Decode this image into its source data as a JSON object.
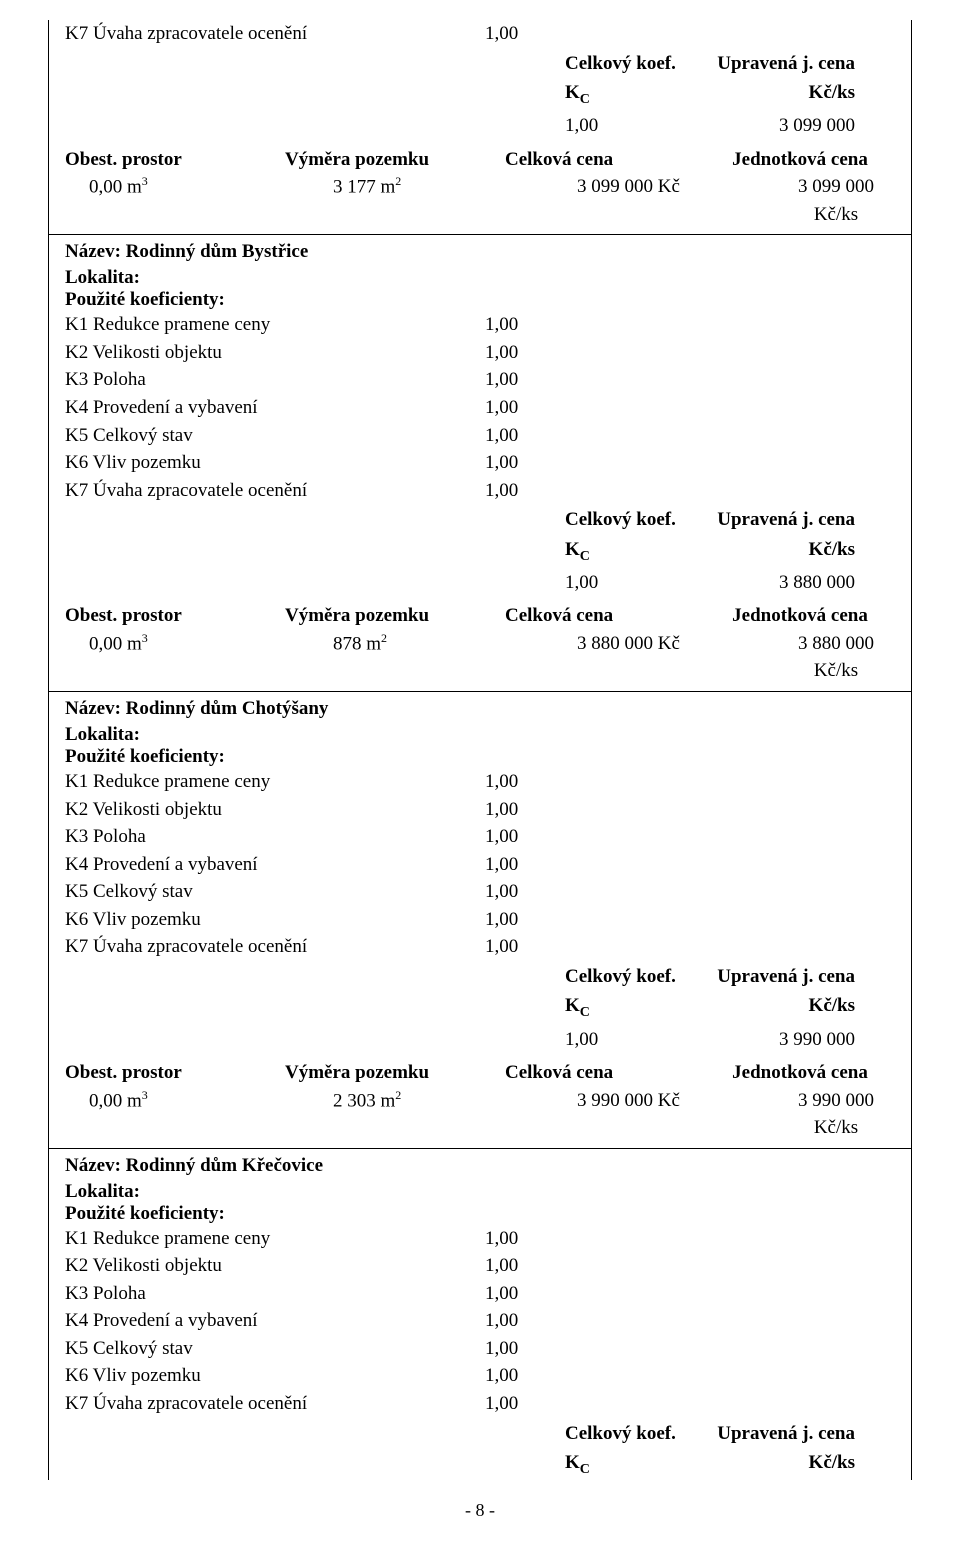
{
  "global": {
    "celkovy_koef_label": "Celkový koef.",
    "upravena_cena_label": "Upravená j. cena",
    "kc_symbol": "K",
    "kc_sub": "C",
    "kc_ks_label": "Kč/ks",
    "obest_prostor": "Obest. prostor",
    "vymera_pozemku": "Výměra pozemku",
    "celkova_cena": "Celková cena",
    "jednotkova_cena": "Jednotková cena",
    "lokalita": "Lokalita:",
    "pouzite_koef": "Použité koeficienty:",
    "k1": "K1 Redukce pramene ceny",
    "k2": "K2 Velikosti objektu",
    "k3": "K3 Poloha",
    "k4": "K4 Provedení a vybavení",
    "k5": "K5 Celkový stav",
    "k6": "K6 Vliv pozemku",
    "k7": "K7 Úvaha zpracovatele ocenění",
    "one": "1,00",
    "footer": "- 8 -",
    "colors": {
      "text": "#000000",
      "background": "#ffffff",
      "border": "#000000"
    },
    "fonts": {
      "family": "Times New Roman",
      "body_size_pt": 14
    }
  },
  "block0": {
    "kc_val": "1,00",
    "upravena_val": "3 099 000",
    "obest_val": "0,00 m",
    "obest_sup": "3",
    "vymera_val": "3 177 m",
    "vymera_sup": "2",
    "celkova_val": "3 099 000 Kč",
    "jednot_val": "3 099 000 Kč/ks"
  },
  "block1": {
    "title": "Název: Rodinný dům Bystřice",
    "kc_val": "1,00",
    "upravena_val": "3 880 000",
    "obest_val": "0,00 m",
    "obest_sup": "3",
    "vymera_val": "878 m",
    "vymera_sup": "2",
    "celkova_val": "3 880 000 Kč",
    "jednot_val": "3 880 000 Kč/ks"
  },
  "block2": {
    "title": "Název: Rodinný dům Chotýšany",
    "kc_val": "1,00",
    "upravena_val": "3 990 000",
    "obest_val": "0,00 m",
    "obest_sup": "3",
    "vymera_val": "2 303 m",
    "vymera_sup": "2",
    "celkova_val": "3 990 000 Kč",
    "jednot_val": "3 990 000 Kč/ks"
  },
  "block3": {
    "title": "Název: Rodinný dům Křečovice"
  }
}
